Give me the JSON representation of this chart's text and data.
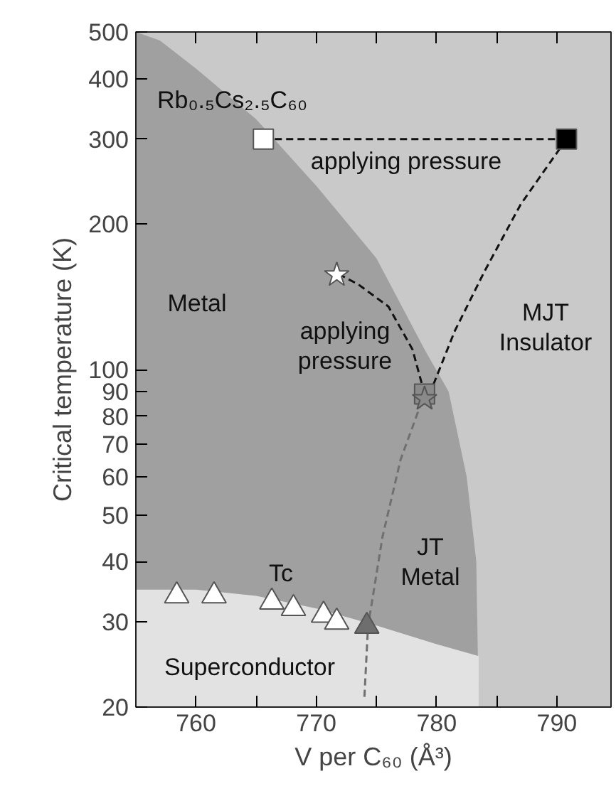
{
  "chart_data": {
    "type": "scatter",
    "xlabel": "V per C₆₀ (Å³)",
    "ylabel": "Critical temperature (K)",
    "xlim": [
      755,
      794.5
    ],
    "ylim": [
      20,
      500
    ],
    "log": "y",
    "grid": false,
    "xticks": [
      {
        "value": 755,
        "label": null
      },
      760,
      {
        "value": 765,
        "label": null
      },
      770,
      {
        "value": 775,
        "label": null
      },
      780,
      {
        "value": 785,
        "label": null
      },
      790
    ],
    "yticks": [
      20,
      30,
      40,
      50,
      60,
      70,
      80,
      90,
      100,
      200,
      300,
      400,
      500
    ],
    "series": [
      {
        "type": "area",
        "color": "#a0a0a0",
        "x": [
          755,
          757,
          760,
          765,
          770,
          775,
          779,
          781,
          782.5,
          783.3,
          783.5
        ],
        "values": [
          500,
          480,
          420,
          330,
          240,
          170,
          110,
          90,
          60,
          40,
          20
        ]
      },
      {
        "type": "area",
        "color": "#e2e2e2",
        "x": [
          755,
          760,
          765,
          770,
          775,
          780,
          783.5
        ],
        "values": [
          35,
          35,
          34,
          32,
          29.5,
          27,
          25.5
        ]
      },
      {
        "type": "line",
        "color": "#111111",
        "line_style": "dashed",
        "marker": "none",
        "x": [
          765.6,
          790.8
        ],
        "values": [
          300,
          300
        ]
      },
      {
        "type": "line",
        "color": "#111111",
        "line_style": "dashed",
        "marker": "none",
        "x": [
          790.8,
          787,
          784,
          781.5,
          779.5
        ],
        "values": [
          300,
          220,
          160,
          120,
          90
        ]
      },
      {
        "type": "line",
        "color": "#111111",
        "line_style": "dashed",
        "marker": "none",
        "x": [
          779,
          778,
          776,
          773.5,
          772
        ],
        "values": [
          89,
          110,
          135,
          150,
          157
        ]
      },
      {
        "type": "line",
        "color": "#707070",
        "line_style": "dashed",
        "marker": "none",
        "x": [
          774,
          774.3,
          775.5,
          777,
          779
        ],
        "values": [
          21,
          29.4,
          45,
          65,
          89
        ]
      },
      {
        "color": "#ffffff",
        "marker": "triangle",
        "x": [
          758.4,
          761.5,
          766.3,
          768.1,
          770.6,
          771.7
        ],
        "values": [
          34,
          34,
          33,
          32,
          31,
          30
        ]
      },
      {
        "color": "#6e6e6e",
        "marker": "triangle",
        "x": [
          774.2
        ],
        "values": [
          29.4
        ]
      },
      {
        "color": "#8a8a8a",
        "marker": "square",
        "x": [
          779
        ],
        "values": [
          89
        ]
      },
      {
        "color": "#8a8a8a",
        "marker": "star",
        "x": [
          779
        ],
        "values": [
          87
        ]
      },
      {
        "color": "#ffffff",
        "marker": "star",
        "x": [
          771.7
        ],
        "values": [
          157
        ]
      },
      {
        "color": "#ffffff",
        "marker": "square",
        "x": [
          765.6
        ],
        "values": [
          300
        ]
      },
      {
        "color": "#000000",
        "marker": "square",
        "x": [
          790.8
        ],
        "values": [
          300
        ]
      }
    ],
    "annotations": [
      "Rb₀.₅Cs₂.₅C₆₀",
      "applying pressure",
      "Metal",
      "applying\npressure",
      "MJT\nInsulator",
      "JT\nMetal",
      "Tc",
      "Superconductor"
    ]
  }
}
